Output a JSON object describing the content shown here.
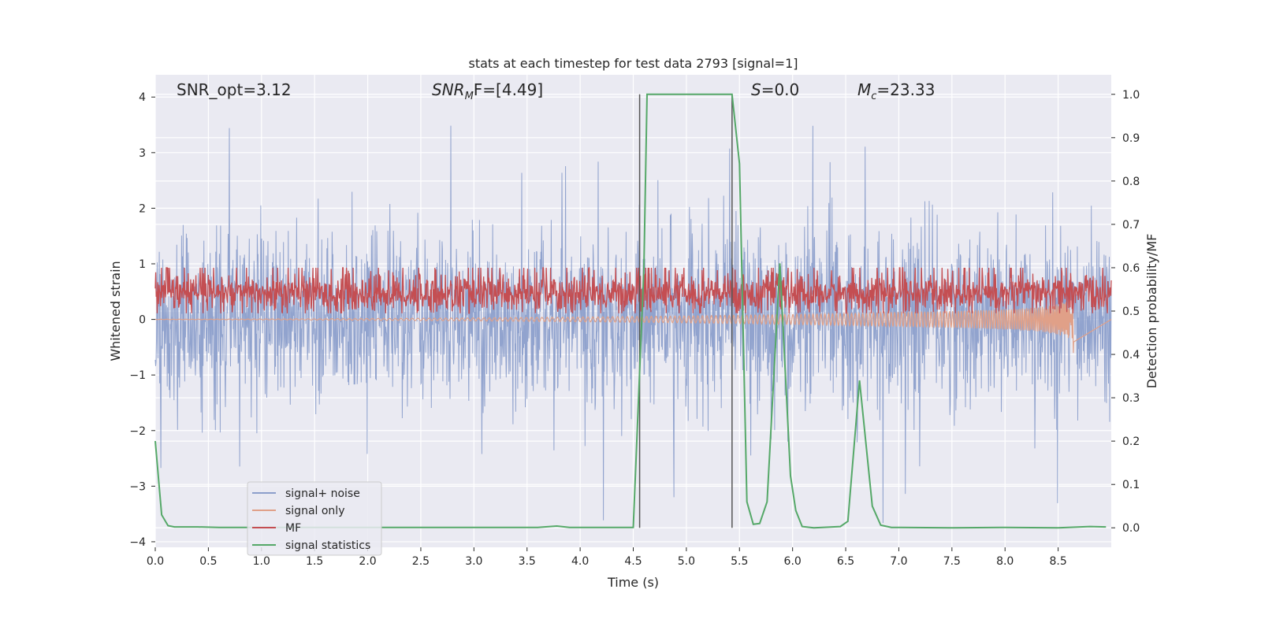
{
  "chart_data": {
    "type": "line",
    "title": "stats at each timestep for test data 2793 [signal=1]",
    "xlabel": "Time (s)",
    "ylabel_left": "Whitened strain",
    "ylabel_right": "Detection probability/MF",
    "xlim": [
      0,
      9
    ],
    "ylim_left": [
      -4.1,
      4.4
    ],
    "ylim_right": [
      -0.045,
      1.045
    ],
    "x_ticks": [
      0.0,
      0.5,
      1.0,
      1.5,
      2.0,
      2.5,
      3.0,
      3.5,
      4.0,
      4.5,
      5.0,
      5.5,
      6.0,
      6.5,
      7.0,
      7.5,
      8.0,
      8.5
    ],
    "x_tick_labels": [
      "0.0",
      "0.5",
      "1.0",
      "1.5",
      "2.0",
      "2.5",
      "3.0",
      "3.5",
      "4.0",
      "4.5",
      "5.0",
      "5.5",
      "6.0",
      "6.5",
      "7.0",
      "7.5",
      "8.0",
      "8.5"
    ],
    "y_left_ticks": [
      4,
      3,
      2,
      1,
      0,
      -1,
      -2,
      -3,
      -4
    ],
    "y_left_tick_labels": [
      "4",
      "3",
      "2",
      "1",
      "0",
      "−1",
      "−2",
      "−3",
      "−4"
    ],
    "y_right_ticks": [
      1.0,
      0.9,
      0.8,
      0.7,
      0.6,
      0.5,
      0.4,
      0.3,
      0.2,
      0.1,
      0.0
    ],
    "y_right_tick_labels": [
      "1.0",
      "0.9",
      "0.8",
      "0.7",
      "0.6",
      "0.5",
      "0.4",
      "0.3",
      "0.2",
      "0.1",
      "0.0"
    ],
    "grid": true,
    "legend_position": "lower-left",
    "annotations": {
      "snr_opt": "SNR_opt=3.12",
      "snr_mf_main": "SNR",
      "snr_mf_sub": "M",
      "snr_mf_rest": "F=[4.49]",
      "s_main": "S",
      "s_rest": "=0.0",
      "mc_main": "M",
      "mc_sub": "c",
      "mc_rest": "=23.33"
    },
    "vertical_lines_x": [
      4.56,
      5.43
    ],
    "series": [
      {
        "name": "signal+ noise",
        "color": "#8c9fcb",
        "axis": "left",
        "envelope": {
          "typical_min": -1.3,
          "typical_max": 1.6,
          "peak_max": 3.55,
          "peak_min": -3.7
        }
      },
      {
        "name": "signal only",
        "color": "#e0a088",
        "axis": "left",
        "chirp_end_x": 8.65,
        "chirp_peak_amplitude": 0.7
      },
      {
        "name": "MF",
        "color": "#c44e52",
        "axis": "right",
        "typical_min": 0.5,
        "typical_max": 0.58,
        "peak_max": 0.6
      },
      {
        "name": "signal statistics",
        "color": "#55a868",
        "axis": "right",
        "x": [
          0.0,
          0.06,
          0.12,
          0.18,
          0.4,
          0.6,
          1.0,
          2.0,
          3.0,
          3.6,
          3.78,
          3.9,
          4.0,
          4.5,
          4.6,
          4.63,
          5.0,
          5.4,
          5.43,
          5.5,
          5.57,
          5.63,
          5.69,
          5.76,
          5.88,
          5.98,
          6.03,
          6.09,
          6.2,
          6.45,
          6.52,
          6.63,
          6.75,
          6.83,
          6.93,
          7.5,
          8.0,
          8.5,
          8.8,
          8.95
        ],
        "y": [
          0.2,
          0.03,
          0.005,
          0.002,
          0.002,
          0.001,
          0.001,
          0.001,
          0.001,
          0.001,
          0.004,
          0.001,
          0.001,
          0.001,
          0.6,
          1.0,
          1.0,
          1.0,
          1.0,
          0.84,
          0.06,
          0.008,
          0.01,
          0.06,
          0.61,
          0.12,
          0.04,
          0.003,
          0.0,
          0.003,
          0.015,
          0.34,
          0.05,
          0.006,
          0.001,
          0.0,
          0.001,
          0.0,
          0.003,
          0.002
        ]
      }
    ]
  }
}
